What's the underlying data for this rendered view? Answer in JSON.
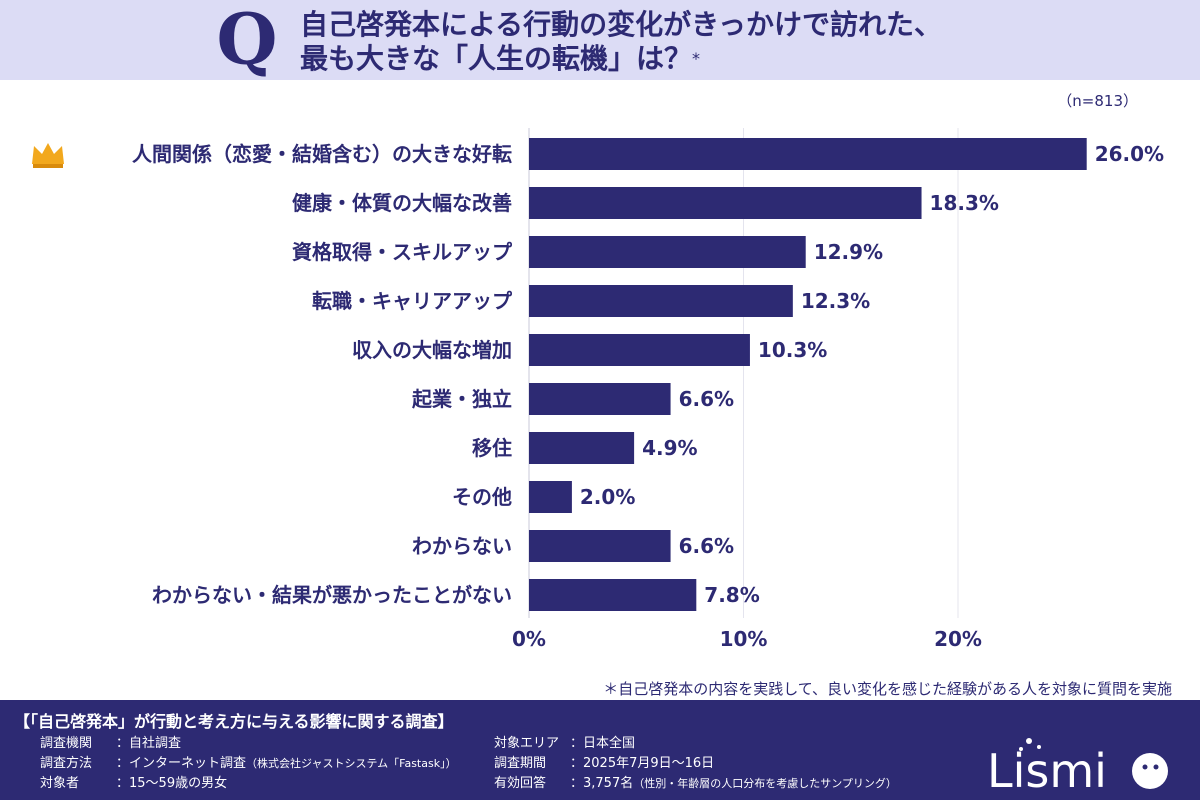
{
  "header": {
    "q_letter": "Q",
    "title_line1": "自己啓発本による行動の変化がきっかけで訪れた、",
    "title_line2": "最も大きな「人生の転機」は？",
    "title_asterisk": "*"
  },
  "sample_size": "（n=813）",
  "chart_data": {
    "type": "bar",
    "orientation": "horizontal",
    "categories": [
      "人間関係（恋愛・結婚含む）の大きな好転",
      "健康・体質の大幅な改善",
      "資格取得・スキルアップ",
      "転職・キャリアアップ",
      "収入の大幅な増加",
      "起業・独立",
      "移住",
      "その他",
      "わからない",
      "わからない・結果が悪かったことがない"
    ],
    "values": [
      26.0,
      18.3,
      12.9,
      12.3,
      10.3,
      6.6,
      4.9,
      2.0,
      6.6,
      7.8
    ],
    "value_labels": [
      "26.0%",
      "18.3%",
      "12.9%",
      "12.3%",
      "10.3%",
      "6.6%",
      "4.9%",
      "2.0%",
      "6.6%",
      "7.8%"
    ],
    "xticks": [
      0,
      10,
      20
    ],
    "xtick_labels": [
      "0%",
      "10%",
      "20%"
    ],
    "xlim": [
      0,
      30
    ],
    "grid": true,
    "top_marker": "crown-icon",
    "bar_color": "#2d2a73"
  },
  "note": "＊自己啓発本の内容を実践して、良い変化を感じた経験がある人を対象に質問を実施",
  "footer": {
    "survey_title": "【「自己啓発本」が行動と考え方に与える影響に関する調査】",
    "rows": [
      {
        "key": "調査機関",
        "value": "：自社調査",
        "sub": ""
      },
      {
        "key": "調査方法",
        "value": "：インターネット調査",
        "sub": "（株式会社ジャストシステム「Fastask」）"
      },
      {
        "key": "対象者",
        "value": "：15〜59歳の男女",
        "sub": ""
      },
      {
        "key": "対象エリア",
        "value": "：日本全国",
        "sub": ""
      },
      {
        "key": "調査期間",
        "value": "：2025年7月9日〜16日",
        "sub": ""
      },
      {
        "key": "有効回答",
        "value": "：3,757名",
        "sub": "（性別・年齢層の人口分布を考慮したサンプリング）"
      }
    ],
    "logo_text": "Lismi"
  },
  "colors": {
    "header_bg": "#dcdcf5",
    "primary": "#2d2a73",
    "crown": "#f2a81d",
    "grid": "#e4e4ee"
  }
}
